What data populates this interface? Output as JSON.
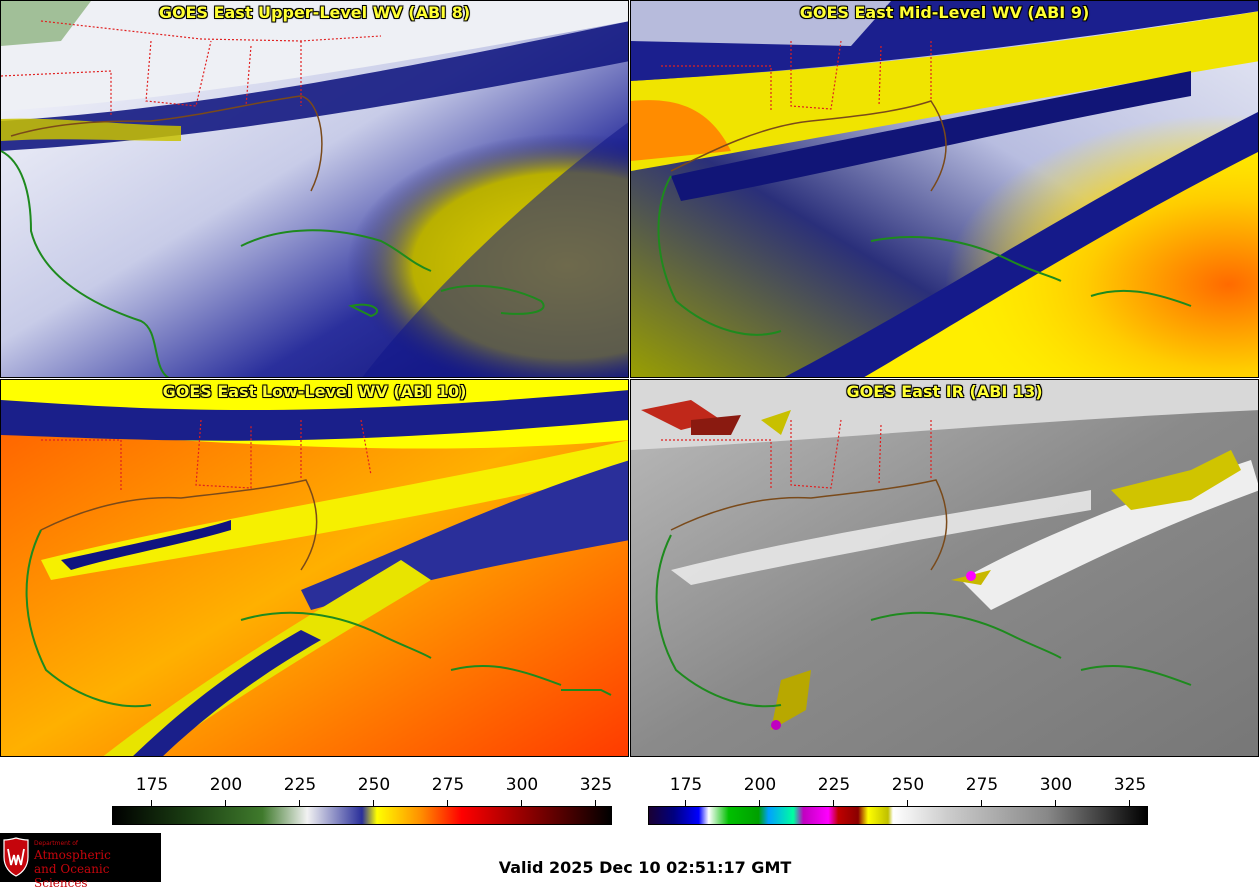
{
  "panels": [
    {
      "title": "GOES East Upper-Level WV (ABI 8)"
    },
    {
      "title": "GOES East Mid-Level WV (ABI 9)"
    },
    {
      "title": "GOES East Low-Level WV (ABI 10)"
    },
    {
      "title": "GOES East IR (ABI 13)"
    }
  ],
  "colorbar_wv": {
    "ticks": [
      "175",
      "200",
      "225",
      "250",
      "275",
      "300",
      "325"
    ],
    "range": [
      162,
      330
    ],
    "colors": [
      "#000000",
      "#1a3d12",
      "#3f7a2c",
      "#f2f2f2",
      "#1a1a8c",
      "#ffff00",
      "#ff6600",
      "#ff0000",
      "#660000",
      "#000000"
    ]
  },
  "colorbar_ir": {
    "ticks": [
      "175",
      "200",
      "225",
      "250",
      "275",
      "300",
      "325"
    ],
    "range": [
      163,
      330
    ]
  },
  "logo": {
    "dept": "Department of",
    "line1": "Atmospheric",
    "line2": "and Oceanic Sciences"
  },
  "valid_time": "Valid 2025 Dec 10 02:51:17 GMT"
}
